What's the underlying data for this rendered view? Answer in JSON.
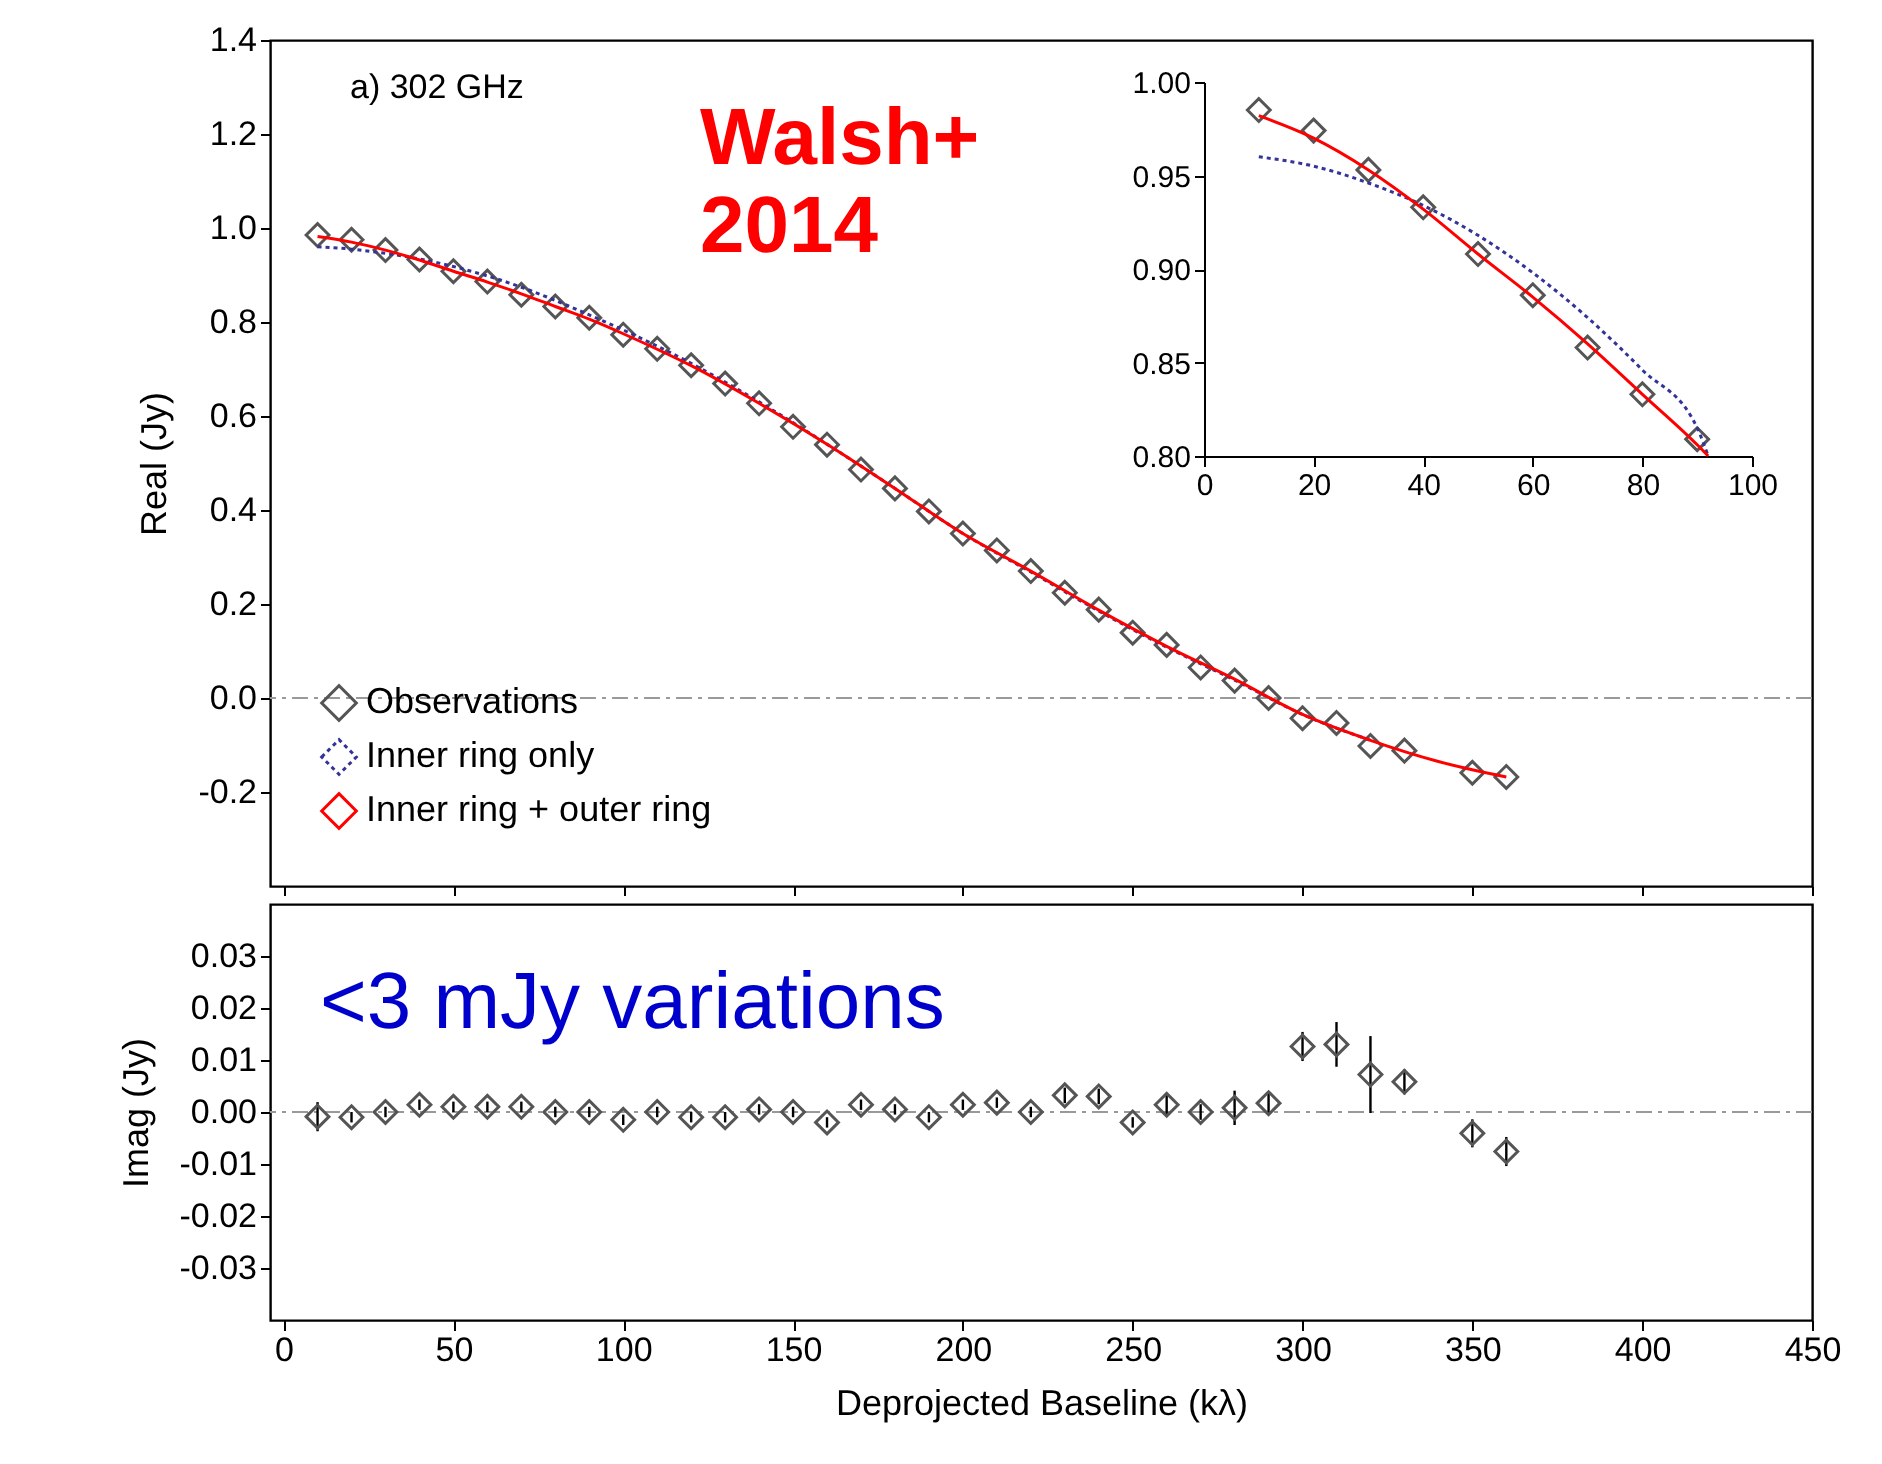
{
  "chart_data": [
    {
      "type": "line",
      "ylabel": "Real (Jy)",
      "annotations": [
        "a) 302 GHz",
        "Walsh+ 2014"
      ],
      "xlim": [
        -4,
        450
      ],
      "xticks": [
        0,
        50,
        100,
        150,
        200,
        250,
        300,
        350,
        400,
        450
      ],
      "ylim": [
        -0.4,
        1.4
      ],
      "yticks": [
        -0.2,
        {
          "value": 0,
          "label": "0.0"
        },
        0.2,
        0.4,
        0.6,
        0.8,
        {
          "value": 1,
          "label": "1.0"
        },
        1.2,
        1.4
      ],
      "tick_labels": "y",
      "legend": "bottom left",
      "ref_lines": [
        {
          "axis": "y",
          "value": 0,
          "color": "#999999",
          "line_style": "dashed"
        }
      ],
      "series": [
        {
          "name": "Observations",
          "type": "scatter",
          "marker": "diamond",
          "color": "#555555",
          "x": [
            10,
            20,
            30,
            40,
            50,
            60,
            70,
            80,
            90,
            100,
            110,
            120,
            130,
            140,
            150,
            160,
            170,
            180,
            190,
            200,
            210,
            220,
            230,
            240,
            250,
            260,
            270,
            280,
            290,
            300,
            310,
            320,
            330,
            350,
            360
          ],
          "values": [
            0.985,
            0.975,
            0.953,
            0.933,
            0.908,
            0.886,
            0.858,
            0.833,
            0.809,
            0.773,
            0.743,
            0.708,
            0.669,
            0.627,
            0.577,
            0.539,
            0.486,
            0.446,
            0.397,
            0.35,
            0.314,
            0.27,
            0.224,
            0.188,
            0.139,
            0.113,
            0.065,
            0.037,
            0.0,
            -0.043,
            -0.053,
            -0.102,
            -0.112,
            -0.159,
            -0.168
          ]
        },
        {
          "name": "Inner ring only",
          "line_style": "dotted",
          "color": "#333399",
          "x": [
            10,
            20,
            30,
            40,
            50,
            60,
            70,
            80,
            90,
            100,
            120,
            140,
            160,
            180,
            200,
            220,
            240,
            260,
            280,
            300,
            320
          ],
          "values": [
            0.96,
            0.955,
            0.946,
            0.934,
            0.918,
            0.898,
            0.874,
            0.846,
            0.815,
            0.783,
            0.712,
            0.63,
            0.54,
            0.446,
            0.35,
            0.268,
            0.185,
            0.108,
            0.038,
            -0.035,
            -0.09
          ]
        },
        {
          "name": "Inner ring + outer ring",
          "line_style": "solid",
          "color": "#ff0000",
          "x": [
            10,
            20,
            30,
            40,
            50,
            60,
            70,
            80,
            90,
            100,
            110,
            120,
            140,
            160,
            180,
            200,
            220,
            240,
            260,
            280,
            300,
            320,
            340,
            360
          ],
          "values": [
            0.982,
            0.97,
            0.953,
            0.932,
            0.908,
            0.885,
            0.86,
            0.833,
            0.806,
            0.775,
            0.742,
            0.707,
            0.627,
            0.54,
            0.446,
            0.35,
            0.27,
            0.187,
            0.11,
            0.04,
            -0.035,
            -0.09,
            -0.135,
            -0.168
          ]
        }
      ]
    },
    {
      "type": "line",
      "xlim": [
        0,
        100
      ],
      "xticks": [
        0,
        20,
        40,
        60,
        80,
        100
      ],
      "ylim": [
        0.8,
        1.0
      ],
      "yticks": [
        {
          "value": 0.8,
          "label": "0.80"
        },
        {
          "value": 0.85,
          "label": "0.85"
        },
        {
          "value": 0.9,
          "label": "0.90"
        },
        {
          "value": 0.95,
          "label": "0.95"
        },
        {
          "value": 1.0,
          "label": "1.00"
        }
      ],
      "series": [
        {
          "type": "scatter",
          "marker": "diamond",
          "color": "#555555",
          "x": [
            10,
            20,
            30,
            40,
            50,
            60,
            70,
            80,
            90
          ],
          "values": [
            0.985,
            0.974,
            0.953,
            0.933,
            0.908,
            0.886,
            0.858,
            0.833,
            0.809
          ]
        },
        {
          "line_style": "dotted",
          "color": "#333399",
          "x": [
            10,
            20,
            30,
            40,
            50,
            60,
            70,
            80,
            90,
            92
          ],
          "values": [
            0.96,
            0.955,
            0.946,
            0.934,
            0.918,
            0.898,
            0.874,
            0.846,
            0.815,
            0.8
          ]
        },
        {
          "line_style": "solid",
          "color": "#ff0000",
          "x": [
            10,
            20,
            30,
            40,
            50,
            60,
            70,
            80,
            90,
            92
          ],
          "values": [
            0.982,
            0.97,
            0.953,
            0.932,
            0.908,
            0.885,
            0.86,
            0.833,
            0.806,
            0.8
          ]
        }
      ]
    },
    {
      "type": "scatter",
      "xlabel": "Deprojected Baseline (kλ)",
      "ylabel": "Imag (Jy)",
      "annotations": [
        "<3 mJy variations"
      ],
      "xlim": [
        -4,
        450
      ],
      "xticks": [
        0,
        50,
        100,
        150,
        200,
        250,
        300,
        350,
        400,
        450
      ],
      "ylim": [
        -0.04,
        0.04
      ],
      "yticks": [
        -0.03,
        -0.02,
        -0.01,
        {
          "value": 0,
          "label": "0.00"
        },
        0.01,
        0.02,
        0.03
      ],
      "ref_lines": [
        {
          "axis": "y",
          "value": 0,
          "color": "#999999",
          "line_style": "dashed"
        }
      ],
      "series": [
        {
          "marker": "diamond",
          "color": "#555555",
          "x": [
            10,
            20,
            30,
            40,
            50,
            60,
            70,
            80,
            90,
            100,
            110,
            120,
            130,
            140,
            150,
            160,
            170,
            180,
            190,
            200,
            210,
            220,
            230,
            240,
            250,
            260,
            270,
            280,
            290,
            300,
            310,
            320,
            330,
            350,
            360
          ],
          "values": [
            -0.0009,
            -0.001,
            0.0,
            0.0014,
            0.001,
            0.001,
            0.001,
            0.0,
            0.0,
            -0.0015,
            0.0,
            -0.001,
            -0.001,
            0.0005,
            0.0,
            -0.002,
            0.0014,
            0.0005,
            -0.001,
            0.0014,
            0.0018,
            0.0,
            0.0032,
            0.003,
            -0.002,
            0.0014,
            0.0,
            0.0008,
            0.0017,
            0.0126,
            0.013,
            0.0072,
            0.0058,
            -0.0041,
            -0.0076
          ],
          "errors": [
            0.0028,
            0.001,
            0.001,
            0.001,
            0.001,
            0.001,
            0.001,
            0.001,
            0.001,
            0.001,
            0.001,
            0.001,
            0.001,
            0.001,
            0.001,
            0.001,
            0.001,
            0.001,
            0.001,
            0.001,
            0.001,
            0.001,
            0.0015,
            0.0015,
            0.001,
            0.002,
            0.0015,
            0.0033,
            0.002,
            0.0028,
            0.0043,
            0.0074,
            0.0024,
            0.0027,
            0.0028
          ]
        }
      ]
    }
  ]
}
